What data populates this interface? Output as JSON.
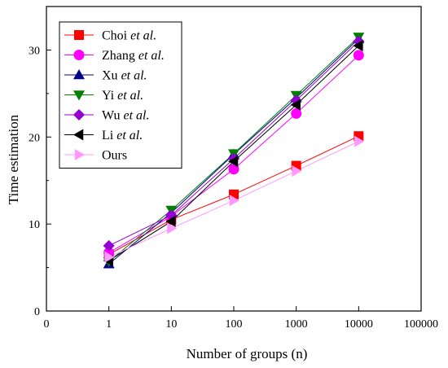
{
  "chart_data": {
    "type": "line",
    "x_scale": "log",
    "xlabel": "Number of groups (n)",
    "ylabel": "Time estimation",
    "xlim": [
      0.1,
      100000
    ],
    "ylim": [
      0,
      35
    ],
    "x_ticks": [
      {
        "value": 0.1,
        "label": "0"
      },
      {
        "value": 1,
        "label": "1"
      },
      {
        "value": 10,
        "label": "10"
      },
      {
        "value": 100,
        "label": "100"
      },
      {
        "value": 1000,
        "label": "1000"
      },
      {
        "value": 10000,
        "label": "10000"
      },
      {
        "value": 100000,
        "label": "100000"
      }
    ],
    "y_ticks": [
      0,
      10,
      20,
      30
    ],
    "grid": false,
    "legend_position": "top-left",
    "x": [
      1,
      10,
      100,
      1000,
      10000
    ],
    "series": [
      {
        "name": "Choi",
        "suffix": " et al.",
        "marker": "square",
        "color": "#ff0000",
        "values": [
          6.5,
          10.5,
          13.4,
          16.7,
          20.1
        ]
      },
      {
        "name": "Zhang",
        "suffix": " et al.",
        "marker": "circle",
        "color": "#ff00ff",
        "values": [
          6.7,
          10.9,
          16.3,
          22.7,
          29.4
        ]
      },
      {
        "name": "Xu",
        "suffix": " et al.",
        "marker": "triangle-up",
        "color": "#00008b",
        "values": [
          5.4,
          11.3,
          18.0,
          24.5,
          31.3
        ]
      },
      {
        "name": "Yi",
        "suffix": " et al.",
        "marker": "triangle-down",
        "color": "#008000",
        "values": [
          5.7,
          11.6,
          18.1,
          24.8,
          31.5
        ]
      },
      {
        "name": "Wu",
        "suffix": " et al.",
        "marker": "diamond",
        "color": "#9400d3",
        "values": [
          7.5,
          11.0,
          17.5,
          24.2,
          31.0
        ]
      },
      {
        "name": "Li",
        "suffix": " et al.",
        "marker": "triangle-left",
        "color": "#000000",
        "values": [
          5.8,
          10.3,
          17.2,
          23.7,
          30.5
        ]
      },
      {
        "name": "Ours",
        "suffix": "",
        "marker": "triangle-right",
        "color": "#ff99ff",
        "values": [
          6.2,
          9.5,
          12.7,
          16.1,
          19.5
        ]
      }
    ]
  }
}
